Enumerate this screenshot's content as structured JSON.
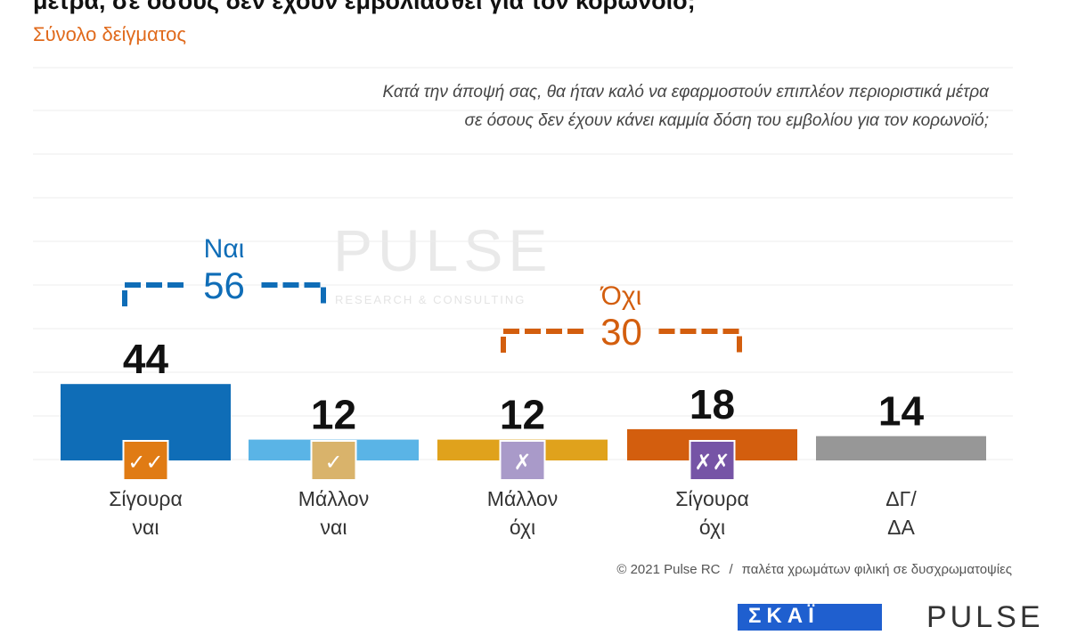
{
  "header": {
    "title": "μέτρα, σε όσους δεν έχουν εμβολιασθεί για τον κορωνοϊό;",
    "subtitle": "Σύνολο δείγματος"
  },
  "question": {
    "line1": "Κατά την άποψή σας, θα ήταν καλό να εφαρμοστούν επιπλέον περιοριστικά μέτρα",
    "line2": "σε όσους δεν έχουν κάνει καμμία δόση του εμβολίου για τον κορωνοϊό;"
  },
  "watermark": {
    "name": "PULSE",
    "tagline": "RESEARCH & CONSULTING"
  },
  "chart_data": {
    "type": "bar",
    "categories": [
      [
        "Σίγουρα",
        "ναι"
      ],
      [
        "Μάλλον",
        "ναι"
      ],
      [
        "Μάλλον",
        "όχι"
      ],
      [
        "Σίγουρα",
        "όχι"
      ],
      [
        "ΔΓ/",
        "ΔΑ"
      ]
    ],
    "values": [
      44,
      12,
      12,
      18,
      14
    ],
    "colors": [
      "#0f6db7",
      "#5ab4e6",
      "#e0a21c",
      "#d35e0e",
      "#979797"
    ],
    "badges": [
      {
        "icon": "double-check-icon",
        "glyph": "✓✓",
        "color": "#e07b14"
      },
      {
        "icon": "check-icon",
        "glyph": "✓",
        "color": "#d9b36b"
      },
      {
        "icon": "cross-icon",
        "glyph": "✗",
        "color": "#a99ac9"
      },
      {
        "icon": "double-cross-icon",
        "glyph": "✗✗",
        "color": "#7654a6"
      },
      null
    ],
    "groups": [
      {
        "label": "Ναι",
        "value": "56",
        "color": "#0f6db7",
        "spans": [
          0,
          1
        ]
      },
      {
        "label": "Όχι",
        "value": "30",
        "color": "#d35e0e",
        "spans": [
          2,
          3
        ]
      }
    ]
  },
  "footer": {
    "copyright": "© 2021 Pulse RC",
    "separator": "/",
    "note": "παλέτα χρωμάτων φιλική σε δυσχρωματοψίες"
  },
  "logo": {
    "glyph": "ΣΚΑΪ",
    "brand": "PULSE"
  }
}
